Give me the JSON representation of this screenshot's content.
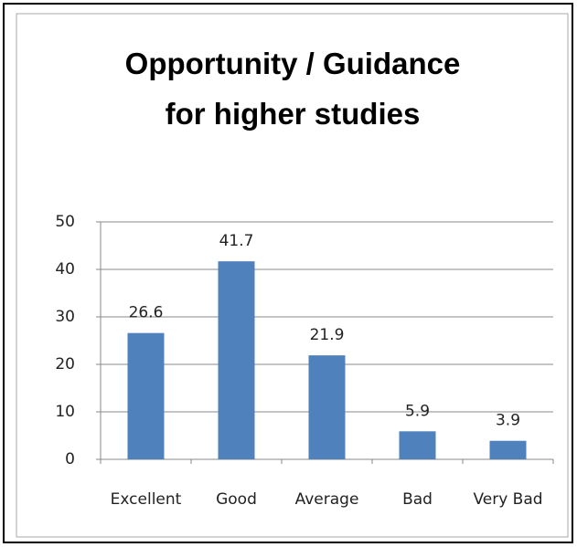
{
  "chart_data": {
    "type": "bar",
    "title": "Opportunity / Guidance for higher studies",
    "categories": [
      "Excellent",
      "Good",
      "Average",
      "Bad",
      "Very Bad"
    ],
    "values": [
      26.6,
      41.7,
      21.9,
      5.9,
      3.9
    ],
    "color": "#4f81bd",
    "ylim": [
      0,
      50
    ],
    "yticks": [
      0,
      10,
      20,
      30,
      40,
      50
    ],
    "grid": true
  }
}
